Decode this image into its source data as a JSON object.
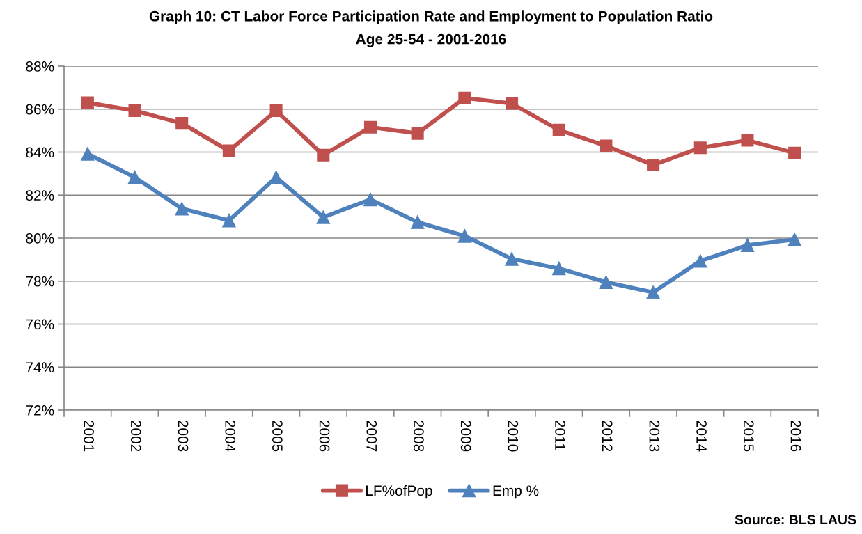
{
  "chart_data": {
    "type": "line",
    "title": "Graph 10: CT Labor Force Participation Rate and Employment to Population Ratio",
    "subtitle": "Age 25-54 - 2001-2016",
    "categories": [
      "2001",
      "2002",
      "2003",
      "2004",
      "2005",
      "2006",
      "2007",
      "2008",
      "2009",
      "2010",
      "2011",
      "2012",
      "2013",
      "2014",
      "2015",
      "2016"
    ],
    "series": [
      {
        "name": "LF%ofPop",
        "color": "#c0504d",
        "marker": "square",
        "values": [
          86.3,
          85.93,
          85.34,
          84.06,
          85.93,
          83.86,
          85.16,
          84.87,
          86.52,
          86.26,
          85.03,
          84.29,
          83.4,
          84.2,
          84.55,
          83.96
        ]
      },
      {
        "name": "Emp %",
        "color": "#4f81bd",
        "marker": "triangle",
        "values": [
          83.92,
          82.83,
          81.37,
          80.82,
          82.83,
          80.97,
          81.8,
          80.74,
          80.1,
          79.03,
          78.59,
          77.95,
          77.48,
          78.94,
          79.67,
          79.93
        ]
      }
    ],
    "ylim": [
      72,
      88
    ],
    "yticks": [
      {
        "value": 72,
        "label": "72%"
      },
      {
        "value": 74,
        "label": "74%"
      },
      {
        "value": 76,
        "label": "76%"
      },
      {
        "value": 78,
        "label": "78%"
      },
      {
        "value": 80,
        "label": "80%"
      },
      {
        "value": 82,
        "label": "82%"
      },
      {
        "value": 84,
        "label": "84%"
      },
      {
        "value": 86,
        "label": "86%"
      },
      {
        "value": 88,
        "label": "88%"
      }
    ],
    "grid": "y",
    "legend": "bottom",
    "line_style": "solid",
    "annotations": [
      "Source: BLS LAUS"
    ]
  }
}
